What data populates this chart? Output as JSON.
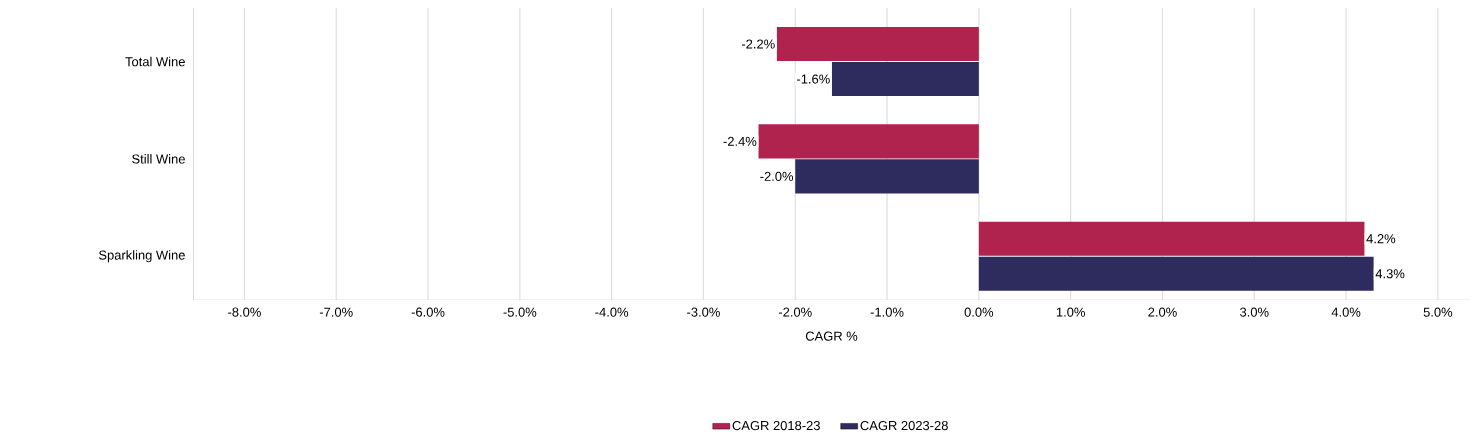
{
  "chart_data": {
    "type": "bar",
    "orientation": "horizontal",
    "xlabel": "CAGR %",
    "categories": [
      "Total Wine",
      "Still Wine",
      "Sparkling Wine"
    ],
    "series": [
      {
        "name": "CAGR 2018-23",
        "color": "#b0234e",
        "values": [
          -2.2,
          -2.4,
          4.2
        ],
        "value_labels": [
          "-2.2%",
          "-2.4%",
          "4.2%"
        ]
      },
      {
        "name": "CAGR 2023-28",
        "color": "#2e2b5f",
        "values": [
          -1.6,
          -2.0,
          4.3
        ],
        "value_labels": [
          "-1.6%",
          "-2.0%",
          "4.3%"
        ]
      }
    ],
    "xlim": [
      -8.56,
      5.35
    ],
    "xticks": [
      {
        "value": -8,
        "label": "-8.0%"
      },
      {
        "value": -7,
        "label": "-7.0%"
      },
      {
        "value": -6,
        "label": "-6.0%"
      },
      {
        "value": -5,
        "label": "-5.0%"
      },
      {
        "value": -4,
        "label": "-4.0%"
      },
      {
        "value": -3,
        "label": "-3.0%"
      },
      {
        "value": -2,
        "label": "-2.0%"
      },
      {
        "value": -1,
        "label": "-1.0%"
      },
      {
        "value": 0,
        "label": "0.0%"
      },
      {
        "value": 1,
        "label": "1.0%"
      },
      {
        "value": 2,
        "label": "2.0%"
      },
      {
        "value": 3,
        "label": "3.0%"
      },
      {
        "value": 4,
        "label": "4.0%"
      },
      {
        "value": 5,
        "label": "5.0%"
      }
    ],
    "grid": "x",
    "legend": "bottom"
  }
}
